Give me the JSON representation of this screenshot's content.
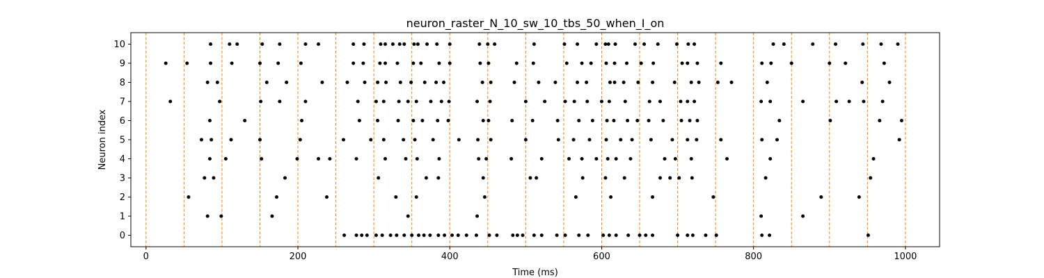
{
  "chart_data": {
    "type": "scatter",
    "title": "neuron_raster_N_10_sw_10_tbs_50_when_I_on",
    "xlabel": "Time (ms)",
    "ylabel": "Neuron index",
    "xlim": [
      -20,
      1045
    ],
    "ylim": [
      -0.6,
      10.6
    ],
    "xticks": [
      0,
      200,
      400,
      600,
      800,
      1000
    ],
    "yticks": [
      0,
      1,
      2,
      3,
      4,
      5,
      6,
      7,
      8,
      9,
      10
    ],
    "grid": false,
    "marker_color": "#000000",
    "vline_color": "#ff7f0e",
    "vlines": [
      0,
      50,
      100,
      150,
      200,
      250,
      300,
      350,
      400,
      450,
      500,
      550,
      600,
      650,
      700,
      750,
      800,
      850,
      900,
      950,
      1000
    ],
    "spikes": [
      {
        "neuron": 0,
        "times": [
          261,
          277,
          284,
          291,
          303,
          311,
          322,
          330,
          340,
          350,
          359,
          366,
          374,
          385,
          393,
          403,
          411,
          422,
          435,
          452,
          462,
          483,
          489,
          496,
          511,
          521,
          541,
          552,
          570,
          582,
          602,
          610,
          619,
          635,
          650,
          658,
          667,
          700,
          713,
          720,
          737,
          751,
          811,
          821,
          951
        ]
      },
      {
        "neuron": 1,
        "times": [
          81,
          99,
          166,
          345,
          436,
          810,
          865
        ]
      },
      {
        "neuron": 2,
        "times": [
          56,
          172,
          238,
          329,
          356,
          446,
          566,
          612,
          667,
          747,
          889,
          939
        ]
      },
      {
        "neuron": 3,
        "times": [
          77,
          89,
          183,
          306,
          369,
          385,
          444,
          506,
          514,
          575,
          605,
          630,
          677,
          690,
          702,
          719,
          816,
          954
        ]
      },
      {
        "neuron": 4,
        "times": [
          84,
          105,
          152,
          199,
          227,
          242,
          277,
          315,
          342,
          357,
          386,
          438,
          448,
          481,
          521,
          557,
          574,
          593,
          608,
          619,
          638,
          683,
          697,
          718,
          765,
          822,
          958
        ]
      },
      {
        "neuron": 5,
        "times": [
          73,
          86,
          112,
          150,
          203,
          260,
          296,
          313,
          339,
          354,
          378,
          412,
          437,
          454,
          500,
          543,
          563,
          584,
          606,
          625,
          640,
          665,
          693,
          713,
          725,
          757,
          811,
          831,
          992
        ]
      },
      {
        "neuron": 6,
        "times": [
          84,
          130,
          205,
          281,
          305,
          332,
          352,
          364,
          384,
          398,
          444,
          451,
          482,
          509,
          542,
          570,
          588,
          607,
          616,
          634,
          647,
          662,
          681,
          705,
          716,
          726,
          834,
          901,
          966,
          995
        ]
      },
      {
        "neuron": 7,
        "times": [
          32,
          97,
          151,
          176,
          210,
          279,
          303,
          313,
          333,
          345,
          356,
          375,
          389,
          399,
          436,
          453,
          500,
          525,
          552,
          564,
          581,
          600,
          610,
          631,
          663,
          677,
          704,
          713,
          722,
          810,
          822,
          865,
          909,
          926,
          945,
          970
        ]
      },
      {
        "neuron": 8,
        "times": [
          81,
          94,
          159,
          185,
          232,
          265,
          288,
          305,
          316,
          335,
          349,
          367,
          382,
          392,
          443,
          454,
          485,
          517,
          539,
          568,
          580,
          611,
          617,
          629,
          648,
          667,
          696,
          718,
          728,
          753,
          771,
          818,
          943,
          979
        ]
      },
      {
        "neuron": 9,
        "times": [
          26,
          54,
          85,
          113,
          150,
          174,
          204,
          273,
          286,
          308,
          315,
          331,
          352,
          362,
          386,
          400,
          440,
          451,
          488,
          510,
          554,
          574,
          586,
          606,
          617,
          633,
          652,
          668,
          706,
          713,
          726,
          757,
          811,
          823,
          850,
          900,
          921,
          972
        ]
      },
      {
        "neuron": 10,
        "times": [
          85,
          110,
          120,
          153,
          176,
          210,
          227,
          273,
          287,
          309,
          315,
          325,
          334,
          340,
          353,
          358,
          370,
          383,
          400,
          439,
          450,
          459,
          511,
          551,
          568,
          593,
          605,
          609,
          618,
          644,
          656,
          674,
          699,
          714,
          722,
          826,
          840,
          878,
          908,
          944,
          968,
          990
        ]
      }
    ]
  }
}
